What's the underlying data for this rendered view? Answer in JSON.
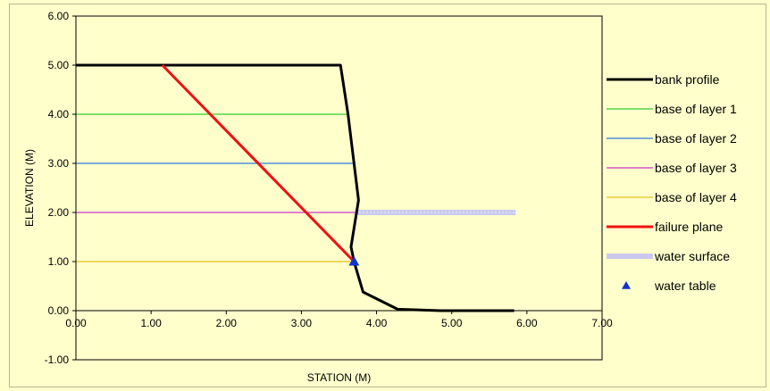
{
  "chart_data": {
    "type": "line",
    "title": "",
    "xlabel": "STATION (M)",
    "ylabel": "ELEVATION (M)",
    "xlim": [
      0,
      7
    ],
    "ylim": [
      -1,
      6
    ],
    "x_ticks": [
      "0.00",
      "1.00",
      "2.00",
      "3.00",
      "4.00",
      "5.00",
      "6.00",
      "7.00"
    ],
    "y_ticks": [
      "-1.00",
      "0.00",
      "1.00",
      "2.00",
      "3.00",
      "4.00",
      "5.00",
      "6.00"
    ],
    "grid": false,
    "legend_position": "right",
    "series": [
      {
        "name": "bank profile",
        "color": "#000000",
        "style": "solid",
        "width": 3,
        "points": [
          [
            0,
            5
          ],
          [
            3.52,
            5
          ],
          [
            3.62,
            4
          ],
          [
            3.7,
            3
          ],
          [
            3.76,
            2.25
          ],
          [
            3.66,
            1.3
          ],
          [
            3.7,
            1.0
          ],
          [
            3.82,
            0.38
          ],
          [
            4.28,
            0.03
          ],
          [
            4.85,
            0
          ],
          [
            5.83,
            0
          ]
        ]
      },
      {
        "name": "base of layer 1",
        "color": "#33cc33",
        "style": "solid",
        "width": 1.2,
        "points": [
          [
            0,
            4
          ],
          [
            3.62,
            4
          ]
        ]
      },
      {
        "name": "base of layer 2",
        "color": "#3377dd",
        "style": "solid",
        "width": 1.2,
        "points": [
          [
            0,
            3
          ],
          [
            3.7,
            3
          ]
        ]
      },
      {
        "name": "base of layer 3",
        "color": "#cc33cc",
        "style": "solid",
        "width": 1.2,
        "points": [
          [
            0,
            2
          ],
          [
            3.72,
            2
          ]
        ]
      },
      {
        "name": "base of layer 4",
        "color": "#e6c020",
        "style": "solid",
        "width": 1.2,
        "points": [
          [
            0,
            1
          ],
          [
            3.7,
            1
          ]
        ]
      },
      {
        "name": "failure plane",
        "color": "#ee1111",
        "style": "solid",
        "width": 3,
        "points": [
          [
            1.15,
            5
          ],
          [
            3.7,
            1.0
          ]
        ]
      },
      {
        "name": "water surface",
        "color": "#c9c9ee",
        "style": "band",
        "width": 6,
        "points": [
          [
            3.72,
            2
          ],
          [
            5.85,
            2
          ]
        ]
      },
      {
        "name": "water table",
        "color": "#1133cc",
        "style": "marker",
        "points": [
          [
            3.7,
            1.0
          ]
        ]
      }
    ]
  }
}
